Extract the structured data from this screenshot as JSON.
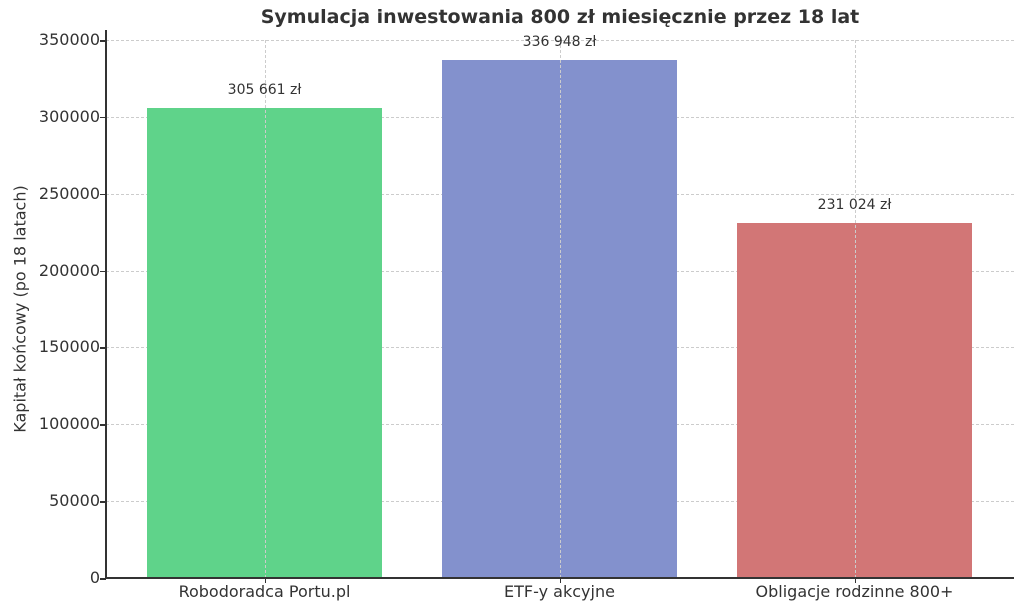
{
  "chart_data": {
    "type": "bar",
    "title": "Symulacja inwestowania 800 zł miesięcznie przez 18 lat",
    "xlabel": "",
    "ylabel": "Kapitał końcowy (po 18 latach)",
    "ylim": [
      0,
      350000
    ],
    "yticks": [
      "0",
      "50000",
      "100000",
      "150000",
      "200000",
      "250000",
      "300000",
      "350000"
    ],
    "categories": [
      "Robodoradca Portu.pl",
      "ETF-y akcyjne",
      "Obligacje rodzinne 800+"
    ],
    "values": [
      305661,
      336948,
      231024
    ],
    "value_labels": [
      "305 661 zł",
      "336 948 zł",
      "231 024 zł"
    ],
    "colors": [
      "#5fd38a",
      "#8391cd",
      "#d27676"
    ],
    "grid": true,
    "legend": null
  }
}
